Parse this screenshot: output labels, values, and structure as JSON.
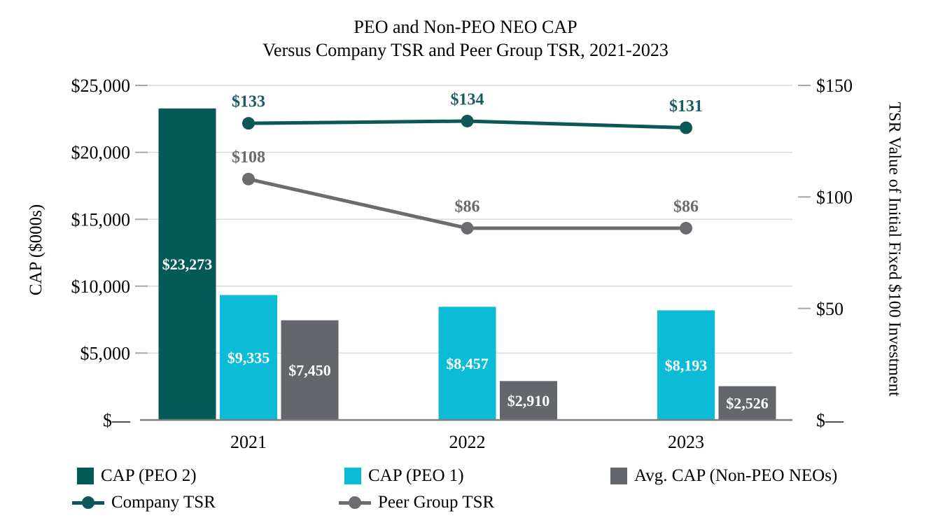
{
  "title": {
    "line1": "PEO and Non-PEO NEO CAP",
    "line2": "Versus Company TSR and Peer Group TSR, 2021-2023"
  },
  "chart_data": {
    "type": "combo-bar-line",
    "categories": [
      "2021",
      "2022",
      "2023"
    ],
    "left_axis": {
      "title": "CAP ($000s)",
      "tick_labels": [
        "$25,000",
        "$20,000",
        "$15,000",
        "$10,000",
        "$5,000",
        "$—"
      ],
      "tick_values": [
        25000,
        20000,
        15000,
        10000,
        5000,
        0
      ],
      "max": 25000
    },
    "right_axis": {
      "title": "TSR Value of Initial Fixed $100 Investment",
      "tick_labels": [
        "$150",
        "$100",
        "$50",
        "$—"
      ],
      "tick_values": [
        150,
        100,
        50,
        0
      ],
      "max": 150
    },
    "bar_series": [
      {
        "name": "CAP (PEO 2)",
        "color": "#045A57",
        "label_color": "#FFFFFF",
        "values": [
          23273,
          null,
          null
        ],
        "labels": [
          "$23,273",
          null,
          null
        ]
      },
      {
        "name": "CAP (PEO 1)",
        "color": "#0CBCD7",
        "label_color": "#FFFFFF",
        "values": [
          9335,
          8457,
          8193
        ],
        "labels": [
          "$9,335",
          "$8,457",
          "$8,193"
        ]
      },
      {
        "name": "Avg. CAP (Non-PEO NEOs)",
        "color": "#63666A",
        "label_color": "#FFFFFF",
        "values": [
          7450,
          2910,
          2526
        ],
        "labels": [
          "$7,450",
          "$2,910",
          "$2,526"
        ]
      }
    ],
    "line_series": [
      {
        "name": "Company TSR",
        "color": "#0E5757",
        "label_color": "#1B5A60",
        "values": [
          133,
          134,
          131
        ],
        "labels": [
          "$133",
          "$134",
          "$131"
        ]
      },
      {
        "name": "Peer Group TSR",
        "color": "#6B6C6F",
        "label_color": "#696A6D",
        "values": [
          108,
          86,
          86
        ],
        "labels": [
          "$108",
          "$86",
          "$86"
        ]
      }
    ],
    "grid_color": "#D9D9D9",
    "axis_line_color": "#7F7F7F",
    "tick_color": "#A6A6A6",
    "grid_on": true,
    "legend_position": "bottom"
  }
}
